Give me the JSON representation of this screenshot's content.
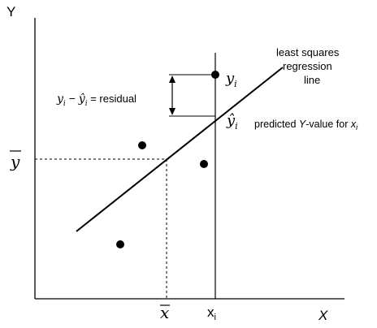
{
  "axes": {
    "y_label": "Y",
    "x_label": "X",
    "x_bar": "x",
    "y_bar": "y",
    "x_i": "x",
    "x_i_sub": "i"
  },
  "annotations": {
    "line_label_1": "least squares",
    "line_label_2": "regression",
    "line_label_3": "line",
    "y_i": "y",
    "y_i_sub": "i",
    "yhat_i": "ŷ",
    "yhat_i_sub": "i",
    "residual_yi": "y",
    "residual_i1": "i",
    "residual_minus": " − ",
    "residual_yhat": "ŷ",
    "residual_i2": "i",
    "residual_eq": " = residual",
    "predicted_1": "predicted ",
    "predicted_Y": "Y",
    "predicted_2": "-value for ",
    "predicted_x": "x",
    "predicted_sub": "i"
  },
  "colors": {
    "stroke": "#000000",
    "point": "#000000",
    "background": "#ffffff"
  }
}
